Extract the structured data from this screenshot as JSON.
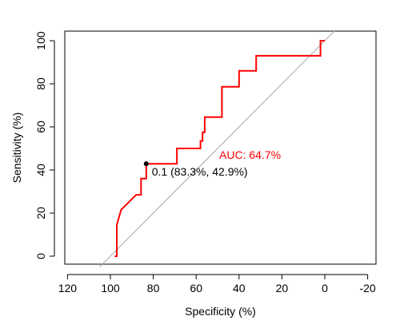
{
  "chart_data": {
    "type": "line",
    "xlabel": "Specificity (%)",
    "ylabel": "Sensitivity (%)",
    "x_reversed": true,
    "xlim": [
      120,
      -20
    ],
    "ylim": [
      0,
      100
    ],
    "x_ticks": [
      120,
      100,
      80,
      60,
      40,
      20,
      0,
      -20
    ],
    "y_ticks": [
      0,
      20,
      40,
      60,
      80,
      100
    ],
    "x_tick_labels": [
      "120",
      "100",
      "80",
      "60",
      "40",
      "20",
      "0",
      "-20"
    ],
    "y_tick_labels": [
      "0",
      "20",
      "40",
      "60",
      "80",
      "100"
    ],
    "grid": false,
    "reference_line": {
      "from": [
        100,
        0
      ],
      "to": [
        0,
        100
      ],
      "color": "#a6a6a6"
    },
    "series": [
      {
        "color": "#ff0000",
        "specificity": [
          98.0,
          98.0,
          97.0,
          97.0,
          95.0,
          95.0,
          88.0,
          88.0,
          85.7,
          85.7,
          83.3,
          83.3,
          69.0,
          69.0,
          58.0,
          58.0,
          57.0,
          57.0,
          56.0,
          56.0,
          48.0,
          48.0,
          40.0,
          40.0,
          32.0,
          32.0,
          2.0,
          2.0,
          0.0
        ],
        "sensitivity": [
          0.0,
          0.0,
          0.0,
          14.5,
          21.5,
          21.5,
          28.5,
          28.5,
          28.5,
          36.0,
          36.0,
          42.9,
          42.9,
          50.0,
          50.0,
          53.5,
          53.5,
          57.5,
          57.5,
          64.5,
          64.5,
          78.6,
          78.6,
          86.0,
          86.0,
          93.0,
          93.0,
          100.0,
          100.0
        ]
      }
    ],
    "best_point": {
      "x": 83.3,
      "y": 42.9,
      "label": "0.1 (83.3%, 42.9%)"
    },
    "auc_label": "AUC: 64.7%",
    "auc_color": "#ff0000"
  }
}
